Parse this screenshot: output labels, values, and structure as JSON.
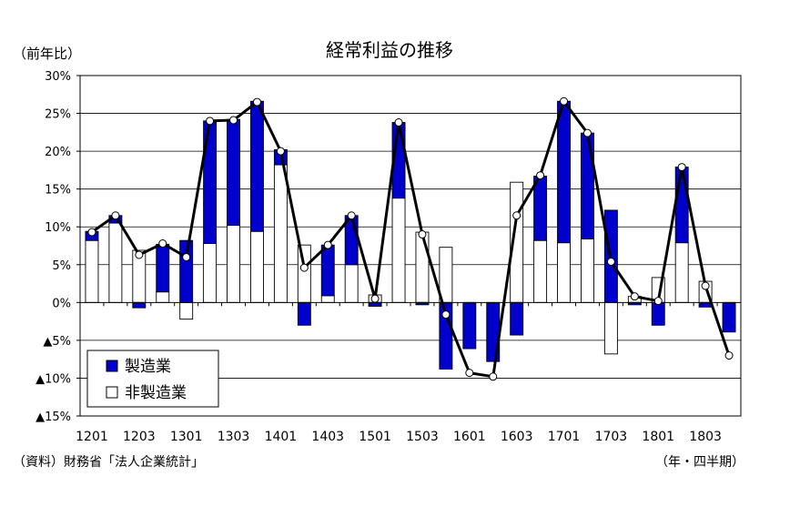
{
  "chart_data": {
    "type": "bar",
    "title": "経常利益の推移",
    "ylabel": "（前年比）",
    "xlabel": "（年・四半期）",
    "source": "（資料）財務省「法人企業統計」",
    "ylim": [
      -15,
      30
    ],
    "yticks": [
      {
        "value": 30,
        "label": "30%"
      },
      {
        "value": 25,
        "label": "25%"
      },
      {
        "value": 20,
        "label": "20%"
      },
      {
        "value": 15,
        "label": "15%"
      },
      {
        "value": 10,
        "label": "10%"
      },
      {
        "value": 5,
        "label": "5%"
      },
      {
        "value": 0,
        "label": "0%"
      },
      {
        "value": -5,
        "label": "▲5%"
      },
      {
        "value": -10,
        "label": "▲10%"
      },
      {
        "value": -15,
        "label": "▲15%"
      }
    ],
    "categories": [
      "1201",
      "1202",
      "1203",
      "1204",
      "1301",
      "1302",
      "1303",
      "1304",
      "1401",
      "1402",
      "1403",
      "1404",
      "1501",
      "1502",
      "1503",
      "1504",
      "1601",
      "1602",
      "1603",
      "1604",
      "1701",
      "1702",
      "1703",
      "1704",
      "1801",
      "1802",
      "1803",
      "1804"
    ],
    "xtick_labels": [
      "1201",
      "",
      "1203",
      "",
      "1301",
      "",
      "1303",
      "",
      "1401",
      "",
      "1403",
      "",
      "1501",
      "",
      "1503",
      "",
      "1601",
      "",
      "1603",
      "",
      "1701",
      "",
      "1703",
      "",
      "1801",
      "",
      "1803",
      ""
    ],
    "grid": true,
    "legend_position": "bottom-left",
    "series": [
      {
        "name": "製造業",
        "kind": "bar",
        "color": "#0000cc",
        "values": [
          1.2,
          1.0,
          -0.7,
          6.3,
          8.2,
          16.2,
          14.0,
          17.2,
          2.0,
          -3.0,
          6.7,
          6.5,
          -0.5,
          10.0,
          -0.3,
          -8.8,
          -6.1,
          -7.8,
          -4.3,
          8.5,
          18.7,
          14.0,
          12.2,
          -0.3,
          -3.0,
          10.0,
          -0.6,
          -3.9
        ]
      },
      {
        "name": "非製造業",
        "kind": "bar",
        "color": "#ffffff",
        "values": [
          8.2,
          10.5,
          6.9,
          1.4,
          -2.2,
          7.8,
          10.2,
          9.4,
          18.2,
          7.6,
          0.9,
          5.0,
          1.0,
          13.8,
          9.3,
          7.3,
          0.0,
          0.0,
          15.9,
          8.2,
          7.9,
          8.4,
          -6.8,
          0.8,
          3.3,
          7.9,
          2.8,
          0.0
        ]
      },
      {
        "name": "",
        "kind": "line",
        "color": "#000000",
        "values": [
          9.3,
          11.5,
          6.3,
          7.8,
          6.0,
          24.0,
          24.1,
          26.5,
          20.0,
          4.6,
          7.6,
          11.5,
          0.5,
          23.8,
          9.0,
          -1.6,
          -9.3,
          -9.8,
          11.5,
          16.8,
          26.6,
          22.4,
          5.4,
          0.8,
          0.2,
          17.9,
          2.2,
          -7.0
        ]
      }
    ]
  }
}
